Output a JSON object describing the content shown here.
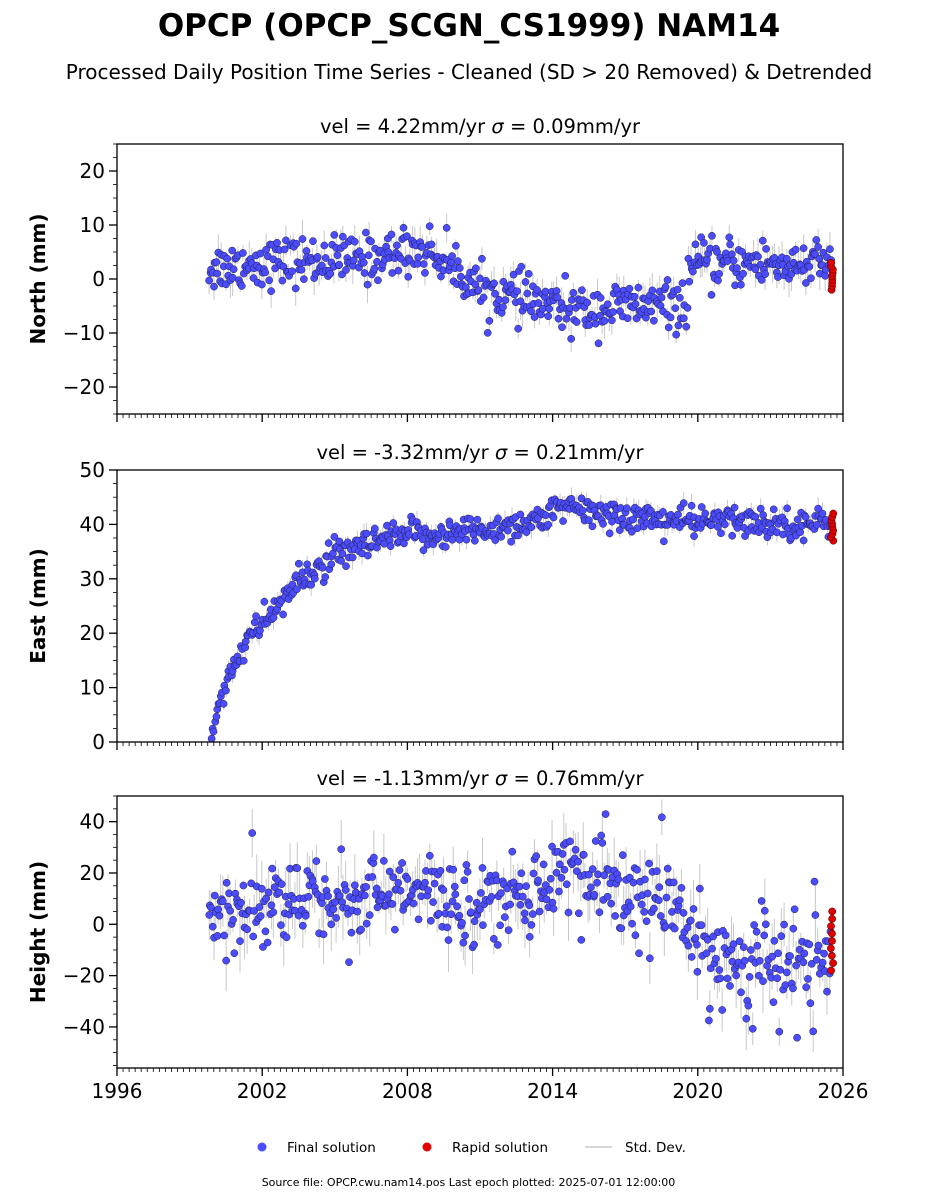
{
  "title": "OPCP (OPCP_SCGN_CS1999) NAM14",
  "subtitle": "Processed Daily Position Time Series - Cleaned (SD > 20 Removed) & Detrended",
  "source_line": "Source file: OPCP.cwu.nam14.pos  Last epoch plotted: 2025-07-01 12:00:00",
  "legend": {
    "final": "Final solution",
    "rapid": "Rapid solution",
    "std": "Std. Dev."
  },
  "colors": {
    "final": "#4b4bff",
    "rapid": "#e00000",
    "std": "#c8c8c8"
  },
  "chart_data": [
    {
      "type": "scatter",
      "component": "north",
      "title_prefix": "vel = 4.22mm/yr",
      "title_sigma": " = 0.09mm/yr",
      "ylabel": "North (mm)",
      "xlim": [
        1996,
        2026
      ],
      "ylim": [
        -25,
        25
      ],
      "yticks": [
        -20,
        -10,
        0,
        10,
        20
      ],
      "xticks": [
        1996,
        2002,
        2008,
        2014,
        2020,
        2026
      ],
      "final_trend": [
        [
          1999.8,
          2
        ],
        [
          2002,
          3
        ],
        [
          2005,
          3.5
        ],
        [
          2007,
          4
        ],
        [
          2008,
          5.5
        ],
        [
          2009,
          5
        ],
        [
          2010,
          2
        ],
        [
          2011,
          -2
        ],
        [
          2012,
          -3
        ],
        [
          2013,
          -4
        ],
        [
          2014,
          -5
        ],
        [
          2015,
          -6
        ],
        [
          2017,
          -5
        ],
        [
          2019.5,
          -5
        ],
        [
          2019.7,
          2.5
        ],
        [
          2022,
          3
        ],
        [
          2025.5,
          2.5
        ]
      ],
      "final_scatter": 2.2,
      "rapid": {
        "x_range": [
          2025.5,
          2025.6
        ],
        "y_range": [
          -2,
          3
        ]
      }
    },
    {
      "type": "scatter",
      "component": "east",
      "title_prefix": "vel = -3.32mm/yr",
      "title_sigma": " = 0.21mm/yr",
      "ylabel": "East (mm)",
      "xlim": [
        1996,
        2026
      ],
      "ylim": [
        0,
        50
      ],
      "yticks": [
        0,
        10,
        20,
        30,
        40,
        50
      ],
      "xticks": [
        1996,
        2002,
        2008,
        2014,
        2020,
        2026
      ],
      "final_trend": [
        [
          1999.9,
          1
        ],
        [
          2000.2,
          7
        ],
        [
          2000.6,
          12
        ],
        [
          2001,
          16
        ],
        [
          2002,
          22
        ],
        [
          2003,
          27
        ],
        [
          2004,
          31
        ],
        [
          2005,
          34
        ],
        [
          2006,
          35.5
        ],
        [
          2007,
          37
        ],
        [
          2008,
          38
        ],
        [
          2010,
          38.5
        ],
        [
          2012,
          39.5
        ],
        [
          2013.5,
          41
        ],
        [
          2014.5,
          43
        ],
        [
          2016,
          42
        ],
        [
          2018,
          41
        ],
        [
          2020,
          40.5
        ],
        [
          2022,
          40.5
        ],
        [
          2025.5,
          40
        ]
      ],
      "final_scatter": 1.4,
      "rapid": {
        "x_range": [
          2025.5,
          2025.6
        ],
        "y_range": [
          37,
          42
        ]
      }
    },
    {
      "type": "scatter",
      "component": "height",
      "title_prefix": "vel = -1.13mm/yr",
      "title_sigma": " = 0.76mm/yr",
      "ylabel": "Height (mm)",
      "xlim": [
        1996,
        2026
      ],
      "ylim": [
        -56,
        50
      ],
      "yticks": [
        -40,
        -20,
        0,
        20,
        40
      ],
      "xticks": [
        1996,
        2002,
        2008,
        2014,
        2020,
        2026
      ],
      "xticklabels": [
        "1996",
        "2002",
        "2008",
        "2014",
        "2020",
        "2026"
      ],
      "final_trend": [
        [
          1999.8,
          5
        ],
        [
          2002,
          8
        ],
        [
          2005,
          10
        ],
        [
          2008,
          12
        ],
        [
          2011,
          8
        ],
        [
          2013,
          12
        ],
        [
          2014.5,
          22
        ],
        [
          2016,
          15
        ],
        [
          2018,
          8
        ],
        [
          2019.5,
          5
        ],
        [
          2020,
          -12
        ],
        [
          2022,
          -15
        ],
        [
          2024,
          -18
        ],
        [
          2025.5,
          -10
        ]
      ],
      "final_scatter": 8,
      "rapid": {
        "x_range": [
          2025.5,
          2025.6
        ],
        "y_range": [
          -18,
          5
        ]
      }
    }
  ]
}
